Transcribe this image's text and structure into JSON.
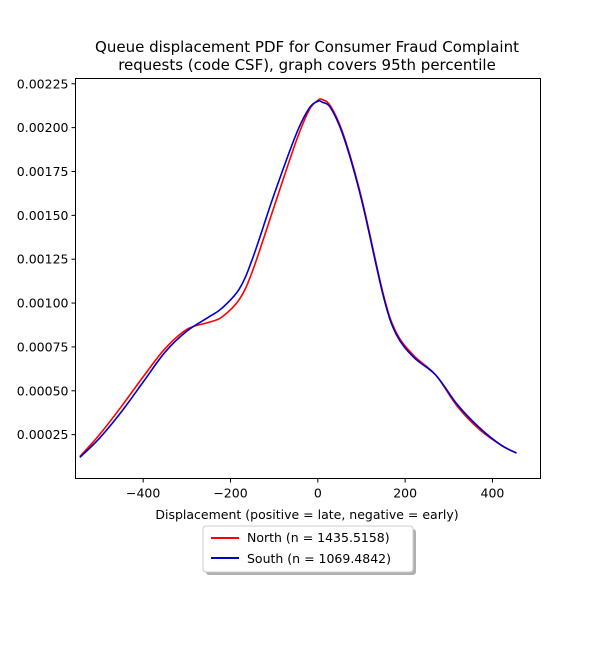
{
  "chart_data": {
    "type": "line",
    "title_lines": [
      "Queue displacement PDF for Consumer Fraud Complaint",
      "requests (code CSF), graph covers 95th percentile"
    ],
    "xlabel": "Displacement (positive = late, negative = early)",
    "ylabel": "",
    "xlim": [
      -555,
      510
    ],
    "ylim": [
      0.0,
      0.00228
    ],
    "x_ticks": [
      -400,
      -200,
      0,
      200,
      400
    ],
    "x_tick_labels": [
      "−400",
      "−200",
      "0",
      "200",
      "400"
    ],
    "y_ticks": [
      0.00025,
      0.0005,
      0.00075,
      0.001,
      0.00125,
      0.0015,
      0.00175,
      0.002,
      0.00225
    ],
    "y_tick_labels": [
      "0.00025",
      "0.00050",
      "0.00075",
      "0.00100",
      "0.00125",
      "0.00150",
      "0.00175",
      "0.00200",
      "0.00225"
    ],
    "grid": false,
    "legend_placement": "below-center",
    "series": [
      {
        "name": "North (n = 1435.5158)",
        "color": "#ff0000",
        "points": [
          [
            -545,
            0.000125
          ],
          [
            -500,
            0.00025
          ],
          [
            -450,
            0.00041
          ],
          [
            -400,
            0.00058
          ],
          [
            -350,
            0.00074
          ],
          [
            -300,
            0.00085
          ],
          [
            -250,
            0.00089
          ],
          [
            -220,
            0.00092
          ],
          [
            -180,
            0.00102
          ],
          [
            -150,
            0.00118
          ],
          [
            -100,
            0.00155
          ],
          [
            -50,
            0.00192
          ],
          [
            -20,
            0.0021
          ],
          [
            0,
            0.002155
          ],
          [
            10,
            0.00216
          ],
          [
            30,
            0.00212
          ],
          [
            60,
            0.00195
          ],
          [
            100,
            0.0016
          ],
          [
            150,
            0.00105
          ],
          [
            180,
            0.00083
          ],
          [
            220,
            0.0007
          ],
          [
            270,
            0.00059
          ],
          [
            320,
            0.00041
          ],
          [
            370,
            0.00028
          ],
          [
            420,
            0.00019
          ],
          [
            455,
            0.000145
          ]
        ]
      },
      {
        "name": "South (n = 1069.4842)",
        "color": "#0000cc",
        "points": [
          [
            -545,
            0.00012
          ],
          [
            -500,
            0.00023
          ],
          [
            -450,
            0.00038
          ],
          [
            -400,
            0.00055
          ],
          [
            -350,
            0.00072
          ],
          [
            -300,
            0.00084
          ],
          [
            -250,
            0.00092
          ],
          [
            -220,
            0.00097
          ],
          [
            -180,
            0.00108
          ],
          [
            -150,
            0.00125
          ],
          [
            -100,
            0.00162
          ],
          [
            -50,
            0.00196
          ],
          [
            -20,
            0.00211
          ],
          [
            0,
            0.00215
          ],
          [
            10,
            0.002145
          ],
          [
            30,
            0.00211
          ],
          [
            60,
            0.00194
          ],
          [
            100,
            0.00159
          ],
          [
            150,
            0.00104
          ],
          [
            180,
            0.00082
          ],
          [
            220,
            0.00069
          ],
          [
            270,
            0.00059
          ],
          [
            320,
            0.00042
          ],
          [
            370,
            0.00029
          ],
          [
            420,
            0.00019
          ],
          [
            455,
            0.000145
          ]
        ]
      }
    ]
  }
}
